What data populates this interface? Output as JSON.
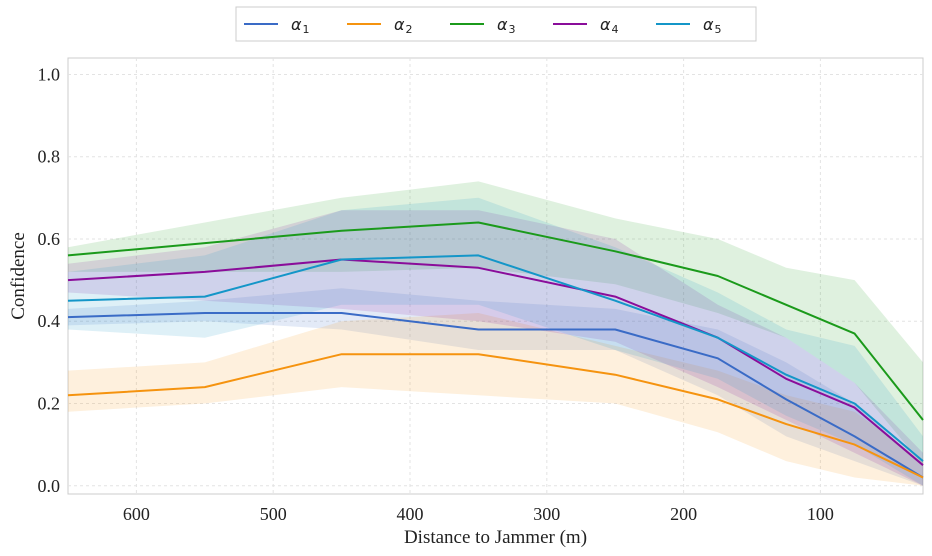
{
  "chart_data": {
    "type": "line",
    "title": "",
    "xlabel": "Distance to Jammer (m)",
    "ylabel": "Confidence",
    "x": [
      650,
      550,
      450,
      350,
      250,
      175,
      125,
      75,
      25
    ],
    "xlim": [
      650,
      25
    ],
    "ylim": [
      -0.02,
      1.04
    ],
    "xticks": [
      600,
      500,
      400,
      300,
      200,
      100
    ],
    "xtick_labels": [
      "600",
      "500",
      "400",
      "300",
      "200",
      "100"
    ],
    "yticks": [
      0.0,
      0.2,
      0.4,
      0.6,
      0.8,
      1.0
    ],
    "ytick_labels": [
      "0.0",
      "0.2",
      "0.4",
      "0.6",
      "0.8",
      "1.0"
    ],
    "grid": true,
    "legend_position": "top-center",
    "series": [
      {
        "name": "α1",
        "symbol": "α",
        "subscript": "1",
        "color": "#3a6bc6",
        "values": [
          0.41,
          0.42,
          0.42,
          0.38,
          0.38,
          0.31,
          0.21,
          0.12,
          0.02
        ],
        "lower": [
          0.39,
          0.4,
          0.38,
          0.33,
          0.33,
          0.22,
          0.12,
          0.06,
          0.0
        ],
        "upper": [
          0.43,
          0.45,
          0.48,
          0.45,
          0.43,
          0.38,
          0.3,
          0.2,
          0.05
        ]
      },
      {
        "name": "α2",
        "symbol": "α",
        "subscript": "2",
        "color": "#f5930f",
        "values": [
          0.22,
          0.24,
          0.32,
          0.32,
          0.27,
          0.21,
          0.15,
          0.1,
          0.02
        ],
        "lower": [
          0.18,
          0.2,
          0.24,
          0.22,
          0.2,
          0.13,
          0.06,
          0.02,
          0.0
        ],
        "upper": [
          0.28,
          0.3,
          0.4,
          0.42,
          0.34,
          0.28,
          0.22,
          0.18,
          0.06
        ]
      },
      {
        "name": "α3",
        "symbol": "α",
        "subscript": "3",
        "color": "#1b9a1b",
        "values": [
          0.56,
          0.59,
          0.62,
          0.64,
          0.57,
          0.51,
          0.44,
          0.37,
          0.16
        ],
        "lower": [
          0.52,
          0.52,
          0.52,
          0.53,
          0.49,
          0.42,
          0.36,
          0.25,
          0.05
        ],
        "upper": [
          0.58,
          0.64,
          0.7,
          0.74,
          0.65,
          0.6,
          0.53,
          0.5,
          0.3
        ]
      },
      {
        "name": "α4",
        "symbol": "α",
        "subscript": "4",
        "color": "#8a0d9a",
        "values": [
          0.5,
          0.52,
          0.55,
          0.53,
          0.46,
          0.36,
          0.26,
          0.19,
          0.05
        ],
        "lower": [
          0.47,
          0.45,
          0.43,
          0.4,
          0.35,
          0.24,
          0.16,
          0.08,
          0.0
        ],
        "upper": [
          0.54,
          0.58,
          0.67,
          0.67,
          0.6,
          0.44,
          0.36,
          0.25,
          0.08
        ]
      },
      {
        "name": "α5",
        "symbol": "α",
        "subscript": "5",
        "color": "#1496c8",
        "values": [
          0.45,
          0.46,
          0.55,
          0.56,
          0.45,
          0.36,
          0.27,
          0.2,
          0.06
        ],
        "lower": [
          0.38,
          0.36,
          0.44,
          0.44,
          0.33,
          0.26,
          0.17,
          0.1,
          0.0
        ],
        "upper": [
          0.52,
          0.56,
          0.67,
          0.7,
          0.58,
          0.47,
          0.38,
          0.34,
          0.12
        ]
      }
    ]
  }
}
